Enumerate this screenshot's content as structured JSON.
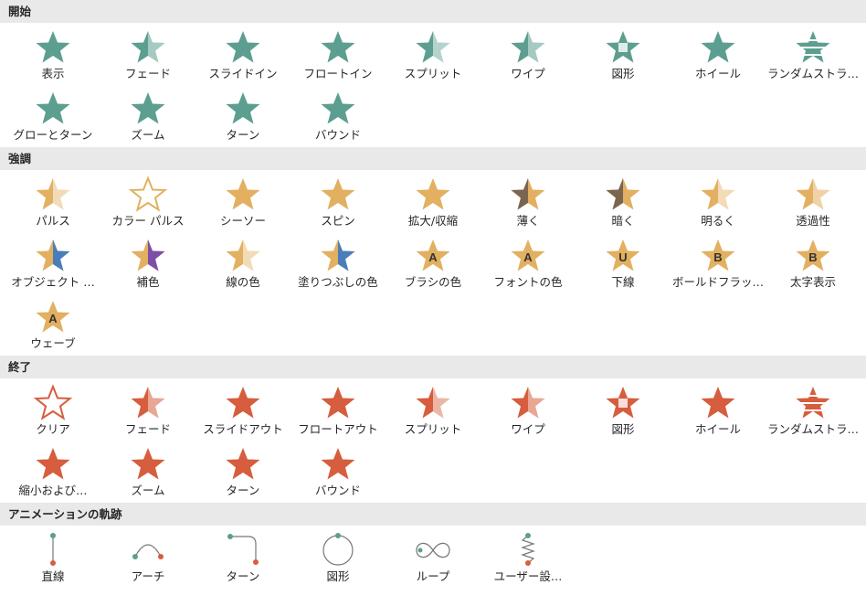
{
  "colors": {
    "entrance": "#5c9e8f",
    "emphasis": "#e2b060",
    "exit": "#d65d3d",
    "path": "#5c9e8f"
  },
  "sections": [
    {
      "title": "開始",
      "items": [
        {
          "label": "表示",
          "icon": "appear-star-icon"
        },
        {
          "label": "フェード",
          "icon": "fade-star-icon"
        },
        {
          "label": "スライドイン",
          "icon": "fly-in-star-icon"
        },
        {
          "label": "フロートイン",
          "icon": "float-in-star-icon"
        },
        {
          "label": "スプリット",
          "icon": "split-star-icon"
        },
        {
          "label": "ワイプ",
          "icon": "wipe-star-icon"
        },
        {
          "label": "図形",
          "icon": "shape-star-icon"
        },
        {
          "label": "ホイール",
          "icon": "wheel-star-icon"
        },
        {
          "label": "ランダムストラ…",
          "icon": "random-bars-star-icon"
        },
        {
          "label": "グローとターン",
          "icon": "grow-turn-star-icon"
        },
        {
          "label": "ズーム",
          "icon": "zoom-star-icon"
        },
        {
          "label": "ターン",
          "icon": "swivel-star-icon"
        },
        {
          "label": "バウンド",
          "icon": "bounce-star-icon"
        }
      ]
    },
    {
      "title": "強調",
      "items": [
        {
          "label": "パルス",
          "icon": "pulse-star-icon"
        },
        {
          "label": "カラー パルス",
          "icon": "color-pulse-star-icon"
        },
        {
          "label": "シーソー",
          "icon": "teeter-star-icon"
        },
        {
          "label": "スピン",
          "icon": "spin-star-icon"
        },
        {
          "label": "拡大/収縮",
          "icon": "grow-shrink-star-icon"
        },
        {
          "label": "薄く",
          "icon": "desaturate-star-icon"
        },
        {
          "label": "暗く",
          "icon": "darken-star-icon"
        },
        {
          "label": "明るく",
          "icon": "lighten-star-icon"
        },
        {
          "label": "透過性",
          "icon": "transparency-star-icon"
        },
        {
          "label": "オブジェクト …",
          "icon": "object-color-star-icon"
        },
        {
          "label": "補色",
          "icon": "complementary-color-star-icon"
        },
        {
          "label": "線の色",
          "icon": "line-color-star-icon"
        },
        {
          "label": "塗りつぶしの色",
          "icon": "fill-color-star-icon"
        },
        {
          "label": "ブラシの色",
          "icon": "brush-color-star-icon",
          "letter": "A"
        },
        {
          "label": "フォントの色",
          "icon": "font-color-star-icon",
          "letter": "A"
        },
        {
          "label": "下線",
          "icon": "underline-star-icon",
          "letter": "U"
        },
        {
          "label": "ボールドフラッ…",
          "icon": "bold-flash-star-icon",
          "letter": "B"
        },
        {
          "label": "太字表示",
          "icon": "bold-reveal-star-icon",
          "letter": "B"
        },
        {
          "label": "ウェーブ",
          "icon": "wave-star-icon",
          "letter": "A"
        }
      ]
    },
    {
      "title": "終了",
      "items": [
        {
          "label": "クリア",
          "icon": "disappear-star-icon"
        },
        {
          "label": "フェード",
          "icon": "fade-out-star-icon"
        },
        {
          "label": "スライドアウト",
          "icon": "fly-out-star-icon"
        },
        {
          "label": "フロートアウト",
          "icon": "float-out-star-icon"
        },
        {
          "label": "スプリット",
          "icon": "split-out-star-icon"
        },
        {
          "label": "ワイプ",
          "icon": "wipe-out-star-icon"
        },
        {
          "label": "図形",
          "icon": "shape-out-star-icon"
        },
        {
          "label": "ホイール",
          "icon": "wheel-out-star-icon"
        },
        {
          "label": "ランダムストラ…",
          "icon": "random-bars-out-star-icon"
        },
        {
          "label": "縮小および…",
          "icon": "shrink-turn-star-icon"
        },
        {
          "label": "ズーム",
          "icon": "zoom-out-star-icon"
        },
        {
          "label": "ターン",
          "icon": "swivel-out-star-icon"
        },
        {
          "label": "バウンド",
          "icon": "bounce-out-star-icon"
        }
      ]
    },
    {
      "title": "アニメーションの軌跡",
      "items": [
        {
          "label": "直線",
          "icon": "line-path-icon"
        },
        {
          "label": "アーチ",
          "icon": "arc-path-icon"
        },
        {
          "label": "ターン",
          "icon": "turn-path-icon"
        },
        {
          "label": "図形",
          "icon": "shape-path-icon"
        },
        {
          "label": "ループ",
          "icon": "loop-path-icon"
        },
        {
          "label": "ユーザー設…",
          "icon": "custom-path-icon"
        }
      ]
    }
  ]
}
